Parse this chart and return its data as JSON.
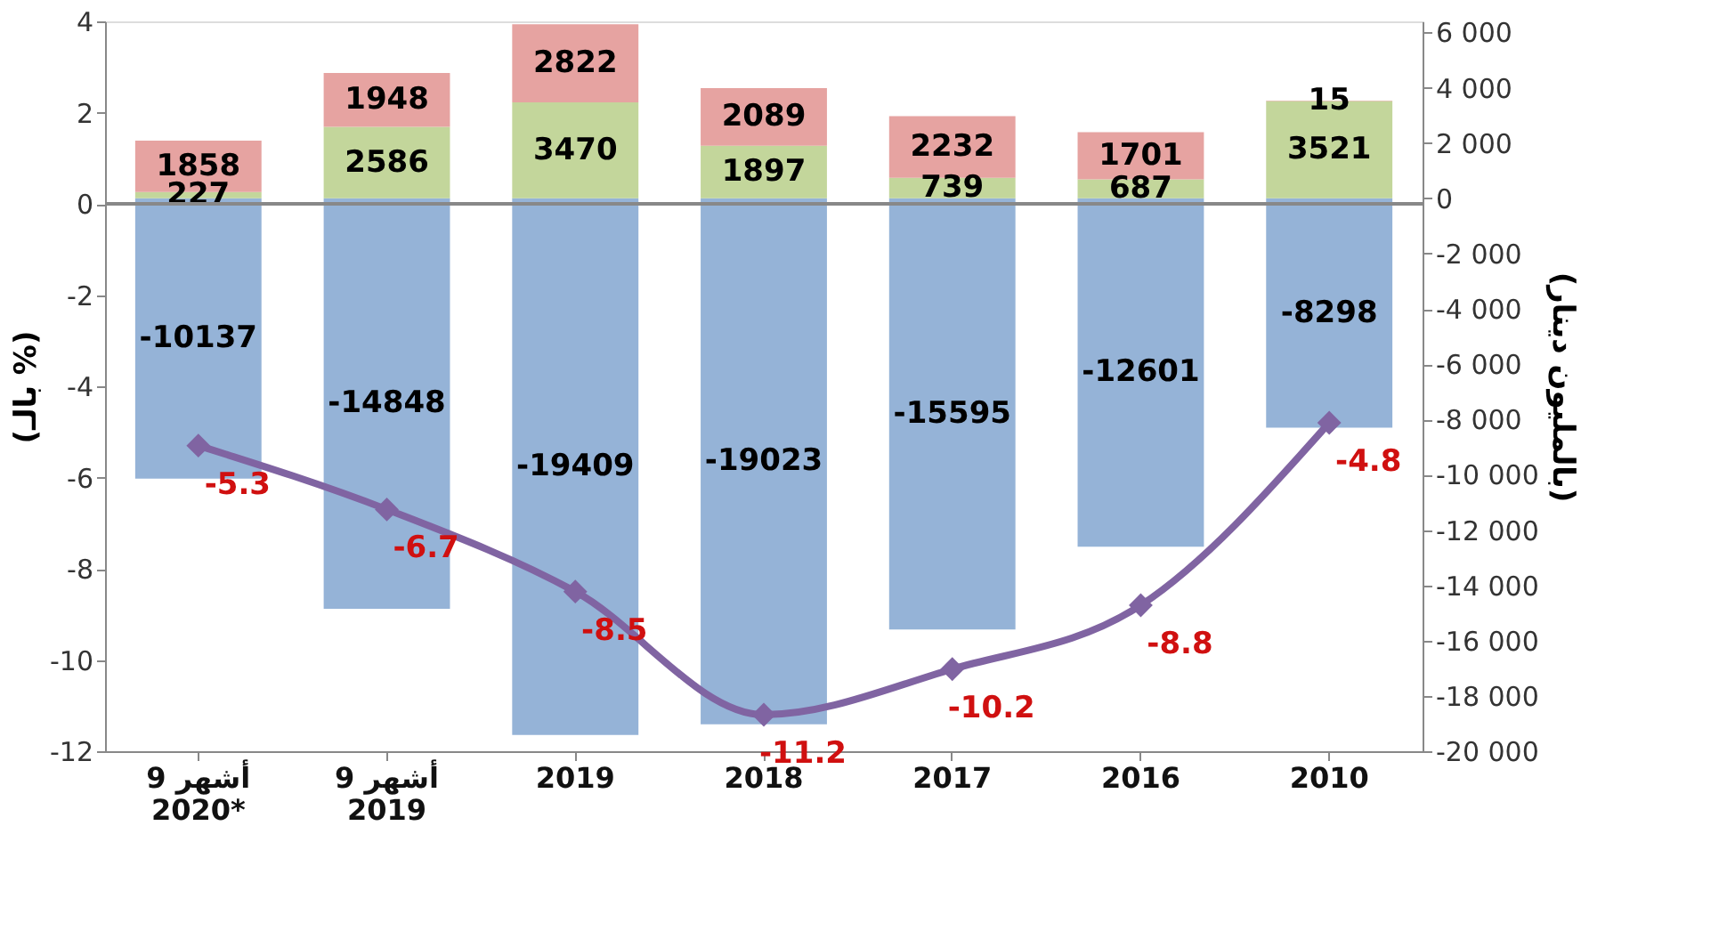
{
  "chart_data": {
    "type": "bar",
    "stacked": true,
    "categories": [
      "9 أشهر\n2020*",
      "9 أشهر\n2019",
      "2019",
      "2018",
      "2017",
      "2016",
      "2010"
    ],
    "ylabel": "(بالـ %)",
    "y2label": "(بالمليون دينار)",
    "ylim": [
      -12,
      4
    ],
    "yticks": [
      -12,
      -10,
      -8,
      -6,
      -4,
      -2,
      0,
      2,
      4
    ],
    "y2lim": [
      -20000,
      6400
    ],
    "y2ticks": [
      {
        "value": -20000,
        "label": "-20 000"
      },
      {
        "value": -18000,
        "label": "-18 000"
      },
      {
        "value": -16000,
        "label": "-16 000"
      },
      {
        "value": -14000,
        "label": "-14 000"
      },
      {
        "value": -12000,
        "label": "-12 000"
      },
      {
        "value": -10000,
        "label": "-10 000"
      },
      {
        "value": -8000,
        "label": "-8 000"
      },
      {
        "value": -6000,
        "label": "-6 000"
      },
      {
        "value": -4000,
        "label": "-4 000"
      },
      {
        "value": -2000,
        "label": "-2 000"
      },
      0,
      {
        "value": 2000,
        "label": "2 000"
      },
      {
        "value": 4000,
        "label": "4 000"
      },
      {
        "value": 6000,
        "label": "6 000"
      }
    ],
    "data_labels": true,
    "grid": false,
    "legend": false,
    "marker": "diamond",
    "ref_lines": [
      {
        "axis": "y",
        "value": 0
      }
    ],
    "series": [
      {
        "axis": "y2",
        "color": "#95b3d7",
        "values": [
          -10137,
          -14848,
          -19409,
          -19023,
          -15595,
          -12601,
          -8298
        ]
      },
      {
        "axis": "y2",
        "color": "#c3d69b",
        "values": [
          227,
          2586,
          3470,
          1897,
          739,
          687,
          3521
        ]
      },
      {
        "axis": "y2",
        "color": "#e6a3a1",
        "values": [
          1858,
          1948,
          2822,
          2089,
          2232,
          1701,
          15
        ]
      },
      {
        "type": "line",
        "axis": "y",
        "color": "#8064a2",
        "values": [
          -5.3,
          -6.7,
          -8.5,
          -11.2,
          -10.2,
          -8.8,
          -4.8
        ]
      }
    ]
  }
}
